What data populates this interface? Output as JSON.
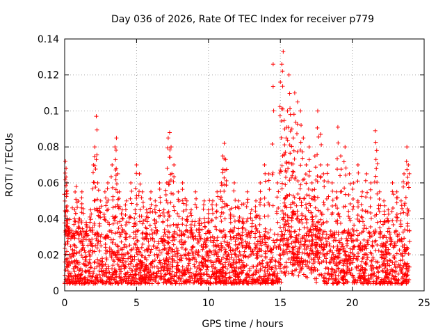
{
  "chart_data": {
    "type": "scatter",
    "title": "Day 036 of 2026, Rate Of TEC Index for receiver p779",
    "xlabel": "GPS time / hours",
    "ylabel": "ROTI / TECUs",
    "xlim": [
      0,
      25
    ],
    "ylim": [
      0,
      0.14
    ],
    "x_ticks": [
      0,
      5,
      10,
      15,
      20,
      25
    ],
    "x_tick_labels": [
      "0",
      "5",
      "10",
      "15",
      "20",
      "25"
    ],
    "y_ticks": [
      0,
      0.02,
      0.04,
      0.06,
      0.08,
      0.1,
      0.12,
      0.14
    ],
    "y_tick_labels": [
      "0",
      "0.02",
      "0.04",
      "0.06",
      "0.08",
      "0.1",
      "0.12",
      "0.14"
    ],
    "grid": true,
    "marker": "+",
    "series": [
      {
        "name": "p779",
        "color": "#ff0000",
        "x": [
          0.05,
          0.1,
          0.15,
          0.2,
          0.3,
          0.5,
          0.7,
          0.8,
          1.0,
          1.2,
          1.5,
          1.8,
          2.0,
          2.1,
          2.2,
          2.3,
          2.5,
          2.8,
          3.0,
          3.3,
          3.5,
          3.6,
          3.7,
          3.8,
          4.0,
          4.3,
          4.6,
          4.9,
          5.0,
          5.2,
          5.4,
          5.7,
          6.0,
          6.3,
          6.6,
          6.9,
          7.1,
          7.2,
          7.3,
          7.4,
          7.6,
          7.9,
          8.2,
          8.5,
          8.8,
          9.1,
          9.4,
          9.7,
          10.0,
          10.3,
          10.6,
          10.9,
          11.0,
          11.1,
          11.2,
          11.5,
          11.8,
          12.1,
          12.4,
          12.7,
          13.0,
          13.3,
          13.6,
          13.9,
          14.2,
          14.5,
          14.8,
          15.0,
          15.1,
          15.2,
          15.3,
          15.4,
          15.5,
          15.6,
          15.7,
          15.8,
          15.9,
          16.0,
          16.2,
          16.4,
          16.6,
          16.8,
          17.0,
          17.2,
          17.4,
          17.6,
          17.8,
          18.0,
          18.3,
          18.6,
          18.9,
          19.0,
          19.2,
          19.5,
          19.8,
          20.1,
          20.4,
          20.7,
          21.0,
          21.3,
          21.6,
          21.7,
          21.9,
          22.2,
          22.5,
          22.8,
          23.1,
          23.4,
          23.6,
          23.8,
          23.9
        ],
        "y": [
          0.072,
          0.068,
          0.06,
          0.04,
          0.035,
          0.03,
          0.045,
          0.058,
          0.04,
          0.055,
          0.038,
          0.045,
          0.07,
          0.08,
          0.097,
          0.06,
          0.05,
          0.055,
          0.06,
          0.07,
          0.08,
          0.085,
          0.065,
          0.055,
          0.045,
          0.05,
          0.06,
          0.045,
          0.07,
          0.065,
          0.055,
          0.045,
          0.055,
          0.05,
          0.06,
          0.045,
          0.06,
          0.085,
          0.088,
          0.08,
          0.07,
          0.055,
          0.06,
          0.05,
          0.045,
          0.055,
          0.04,
          0.05,
          0.045,
          0.05,
          0.055,
          0.06,
          0.075,
          0.082,
          0.073,
          0.045,
          0.06,
          0.05,
          0.04,
          0.055,
          0.045,
          0.05,
          0.06,
          0.07,
          0.065,
          0.126,
          0.06,
          0.116,
          0.126,
          0.133,
          0.09,
          0.085,
          0.1,
          0.12,
          0.098,
          0.09,
          0.085,
          0.11,
          0.105,
          0.1,
          0.085,
          0.07,
          0.08,
          0.06,
          0.075,
          0.1,
          0.087,
          0.065,
          0.07,
          0.06,
          0.055,
          0.091,
          0.075,
          0.08,
          0.065,
          0.06,
          0.07,
          0.055,
          0.065,
          0.06,
          0.089,
          0.078,
          0.055,
          0.05,
          0.045,
          0.06,
          0.055,
          0.05,
          0.065,
          0.08,
          0.07
        ]
      }
    ],
    "note": "A dense band of additional points (roughly 0.005-0.03 TECUs) spans the full 0-24 h range."
  }
}
